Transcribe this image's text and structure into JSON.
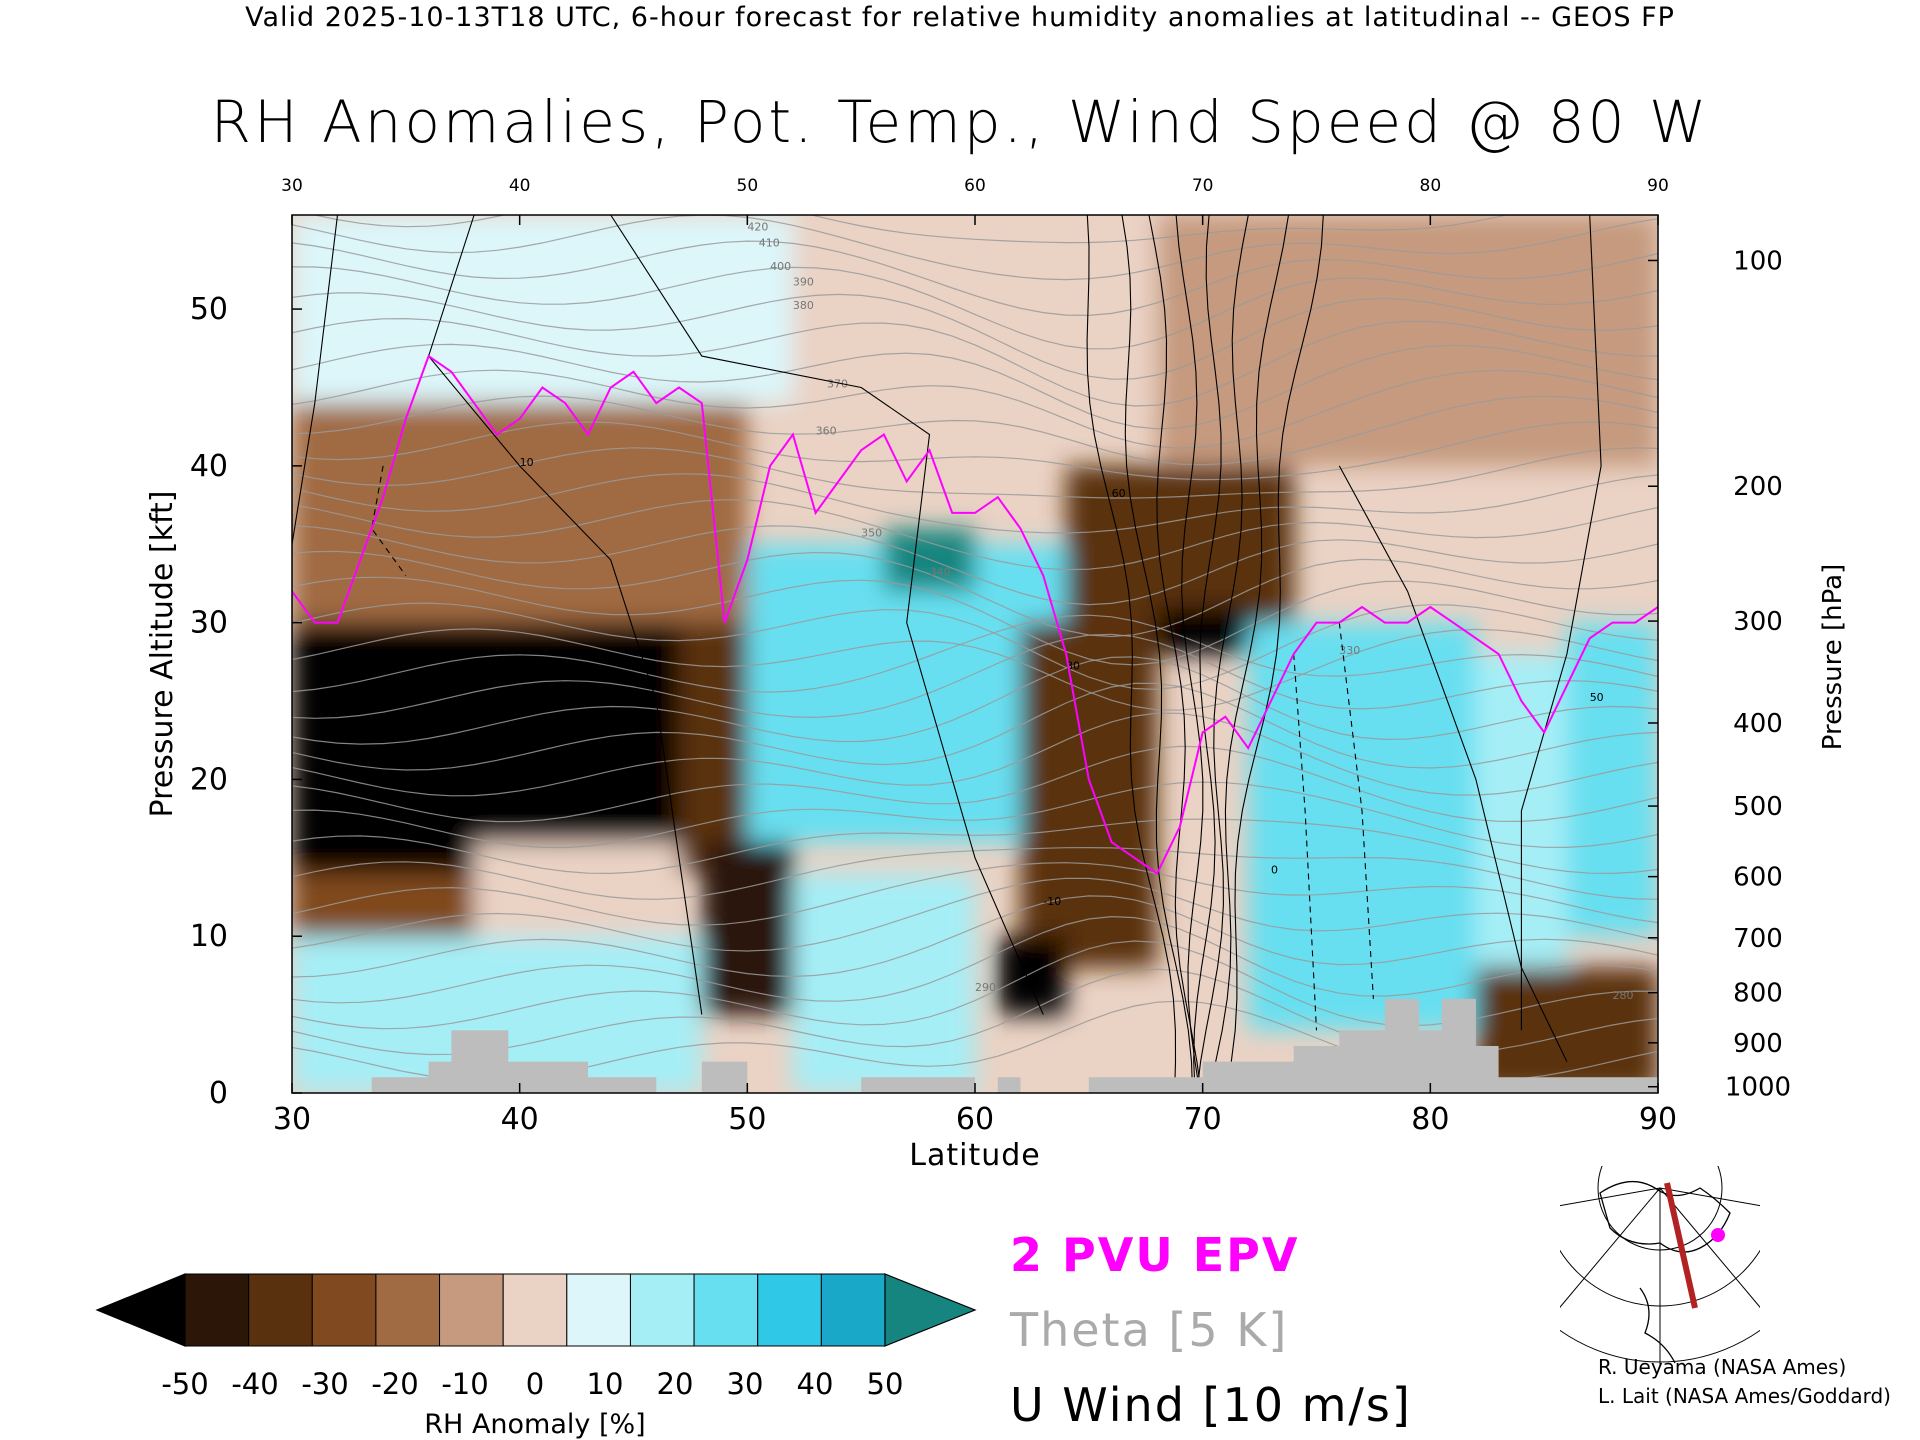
{
  "header_text": "Valid 2025-10-13T18 UTC, 6-hour forecast for relative humidity anomalies at latitudinal -- GEOS FP",
  "chart_data": {
    "type": "heatmap",
    "title": "RH Anomalies, Pot. Temp., Wind Speed @ 80 W",
    "xlabel": "Latitude",
    "ylabel_left": "Pressure Altitude [kft]",
    "ylabel_right": "Pressure [hPa]",
    "xlim": [
      30,
      90
    ],
    "ylim": [
      0,
      56
    ],
    "x_ticks": [
      "30",
      "40",
      "50",
      "60",
      "70",
      "80",
      "90"
    ],
    "y_ticks": [
      "0",
      "10",
      "20",
      "30",
      "40",
      "50"
    ],
    "pressure_ticks": [
      {
        "label": "100",
        "kft": 53.1
      },
      {
        "label": "200",
        "kft": 38.7
      },
      {
        "label": "300",
        "kft": 30.1
      },
      {
        "label": "400",
        "kft": 23.6
      },
      {
        "label": "500",
        "kft": 18.3
      },
      {
        "label": "600",
        "kft": 13.8
      },
      {
        "label": "700",
        "kft": 9.9
      },
      {
        "label": "800",
        "kft": 6.4
      },
      {
        "label": "900",
        "kft": 3.2
      },
      {
        "label": "1000",
        "kft": 0.4
      }
    ],
    "colorbar": {
      "label": "RH Anomaly [%]",
      "tick_labels": [
        "-50",
        "-40",
        "-30",
        "-20",
        "-10",
        "0",
        "10",
        "20",
        "30",
        "40",
        "50"
      ],
      "colors": [
        "#2b1608",
        "#5a310f",
        "#80491f",
        "#a06a42",
        "#c59a7e",
        "#ead2c4",
        "#dcf6fa",
        "#a6eef6",
        "#68dff0",
        "#2fc8e6",
        "#1aa8c8"
      ],
      "under_color": "#000000",
      "over_color": "#17857f"
    },
    "regions": [
      {
        "lat": [
          30,
          52
        ],
        "kft": [
          44,
          56
        ],
        "anom": 10
      },
      {
        "lat": [
          30,
          50
        ],
        "kft": [
          30,
          44
        ],
        "anom": -20
      },
      {
        "lat": [
          52,
          68
        ],
        "kft": [
          44,
          56
        ],
        "anom": 0
      },
      {
        "lat": [
          68,
          90
        ],
        "kft": [
          40,
          56
        ],
        "anom": -10
      },
      {
        "lat": [
          30,
          47
        ],
        "kft": [
          14,
          30
        ],
        "anom": -55
      },
      {
        "lat": [
          47,
          50
        ],
        "kft": [
          14,
          30
        ],
        "anom": -40
      },
      {
        "lat": [
          30,
          38
        ],
        "kft": [
          10,
          14
        ],
        "anom": -30
      },
      {
        "lat": [
          38,
          47
        ],
        "kft": [
          10,
          16
        ],
        "anom": 5
      },
      {
        "lat": [
          30,
          48
        ],
        "kft": [
          0,
          10
        ],
        "anom": 20
      },
      {
        "lat": [
          48,
          52
        ],
        "kft": [
          5,
          16
        ],
        "anom": -45
      },
      {
        "lat": [
          52,
          56
        ],
        "kft": [
          4,
          10
        ],
        "anom": -30
      },
      {
        "lat": [
          50,
          64
        ],
        "kft": [
          16,
          35
        ],
        "anom": 35
      },
      {
        "lat": [
          56,
          60
        ],
        "kft": [
          32,
          36
        ],
        "anom": 55
      },
      {
        "lat": [
          52,
          60
        ],
        "kft": [
          0,
          14
        ],
        "anom": 25
      },
      {
        "lat": [
          62,
          68
        ],
        "kft": [
          8,
          30
        ],
        "anom": -35
      },
      {
        "lat": [
          61,
          64
        ],
        "kft": [
          5,
          10
        ],
        "anom": -55
      },
      {
        "lat": [
          64,
          74
        ],
        "kft": [
          30,
          40
        ],
        "anom": -35
      },
      {
        "lat": [
          68,
          72
        ],
        "kft": [
          28,
          31
        ],
        "anom": -55
      },
      {
        "lat": [
          72,
          82
        ],
        "kft": [
          4,
          30
        ],
        "anom": 35
      },
      {
        "lat": [
          82,
          86
        ],
        "kft": [
          8,
          28
        ],
        "anom": 20
      },
      {
        "lat": [
          86,
          90
        ],
        "kft": [
          10,
          30
        ],
        "anom": 30
      },
      {
        "lat": [
          82,
          90
        ],
        "kft": [
          0,
          8
        ],
        "anom": -35
      }
    ],
    "epv_2pvu": [
      [
        30,
        32
      ],
      [
        31,
        30
      ],
      [
        32,
        30
      ],
      [
        33,
        34
      ],
      [
        34,
        38
      ],
      [
        35,
        43
      ],
      [
        36,
        47
      ],
      [
        37,
        46
      ],
      [
        38,
        44
      ],
      [
        39,
        42
      ],
      [
        40,
        43
      ],
      [
        41,
        45
      ],
      [
        42,
        44
      ],
      [
        43,
        42
      ],
      [
        44,
        45
      ],
      [
        45,
        46
      ],
      [
        46,
        44
      ],
      [
        47,
        45
      ],
      [
        48,
        44
      ],
      [
        49,
        30
      ],
      [
        50,
        34
      ],
      [
        51,
        40
      ],
      [
        52,
        42
      ],
      [
        53,
        37
      ],
      [
        54,
        39
      ],
      [
        55,
        41
      ],
      [
        56,
        42
      ],
      [
        57,
        39
      ],
      [
        58,
        41
      ],
      [
        59,
        37
      ],
      [
        60,
        37
      ],
      [
        61,
        38
      ],
      [
        62,
        36
      ],
      [
        63,
        33
      ],
      [
        64,
        28
      ],
      [
        65,
        20
      ],
      [
        66,
        16
      ],
      [
        67,
        15
      ],
      [
        68,
        14
      ],
      [
        69,
        17
      ],
      [
        70,
        23
      ],
      [
        71,
        24
      ],
      [
        72,
        22
      ],
      [
        73,
        25
      ],
      [
        74,
        28
      ],
      [
        75,
        30
      ],
      [
        76,
        30
      ],
      [
        77,
        31
      ],
      [
        78,
        30
      ],
      [
        79,
        30
      ],
      [
        80,
        31
      ],
      [
        81,
        30
      ],
      [
        82,
        29
      ],
      [
        83,
        28
      ],
      [
        84,
        25
      ],
      [
        85,
        23
      ],
      [
        86,
        26
      ],
      [
        87,
        29
      ],
      [
        88,
        30
      ],
      [
        89,
        30
      ],
      [
        90,
        31
      ]
    ],
    "terrain": [
      [
        30,
        0
      ],
      [
        33.5,
        0
      ],
      [
        33.5,
        1
      ],
      [
        36,
        1
      ],
      [
        36,
        2
      ],
      [
        37,
        2
      ],
      [
        37,
        4
      ],
      [
        39.5,
        4
      ],
      [
        39.5,
        2
      ],
      [
        43,
        2
      ],
      [
        43,
        1
      ],
      [
        46,
        1
      ],
      [
        46,
        0
      ],
      [
        48,
        0
      ],
      [
        48,
        2
      ],
      [
        50,
        2
      ],
      [
        50,
        0
      ],
      [
        55,
        0
      ],
      [
        55,
        1
      ],
      [
        60,
        1
      ],
      [
        60,
        0
      ],
      [
        61,
        0
      ],
      [
        61,
        1
      ],
      [
        62,
        1
      ],
      [
        62,
        0
      ],
      [
        65,
        0
      ],
      [
        65,
        1
      ],
      [
        70,
        1
      ],
      [
        70,
        2
      ],
      [
        74,
        2
      ],
      [
        74,
        3
      ],
      [
        76,
        3
      ],
      [
        76,
        4
      ],
      [
        78,
        4
      ],
      [
        78,
        6
      ],
      [
        79.5,
        6
      ],
      [
        79.5,
        4
      ],
      [
        80.5,
        4
      ],
      [
        80.5,
        6
      ],
      [
        82,
        6
      ],
      [
        82,
        3
      ],
      [
        83,
        3
      ],
      [
        83,
        1
      ],
      [
        90,
        1
      ]
    ],
    "theta_labels": [
      "420",
      "410",
      "400",
      "390",
      "380",
      "370",
      "360",
      "350",
      "340",
      "330",
      "290",
      "280"
    ],
    "wind_labels": [
      "10",
      "30",
      "60",
      "-10",
      "0",
      "50"
    ],
    "legend_items": [
      {
        "label": "2 PVU EPV",
        "color": "#ff00ff"
      },
      {
        "label": "Theta [5 K]",
        "color": "#aaaaaa"
      },
      {
        "label": "U Wind [10 m/s]",
        "color": "#000000"
      }
    ]
  },
  "credits": [
    "R. Ueyama (NASA Ames)",
    "L. Lait (NASA Ames/Goddard)"
  ]
}
